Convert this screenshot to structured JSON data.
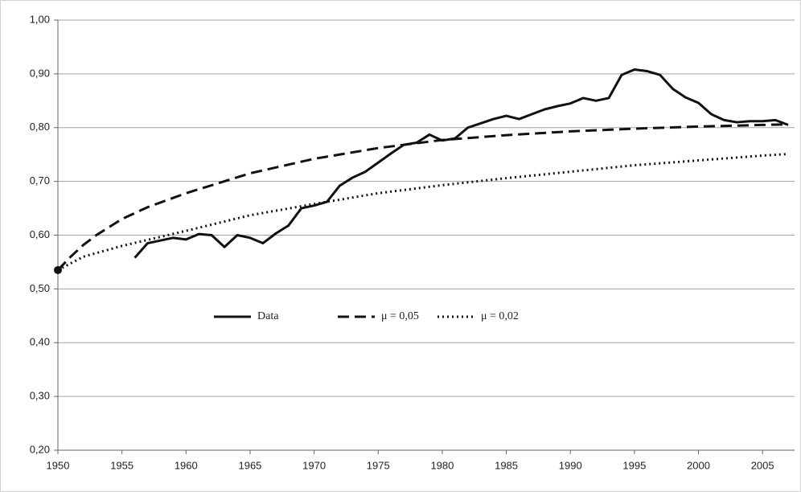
{
  "chart_data": {
    "type": "line",
    "xlim": [
      1950,
      2007.5
    ],
    "xticks": [
      1950,
      1955,
      1960,
      1965,
      1970,
      1975,
      1980,
      1985,
      1990,
      1995,
      2000,
      2005
    ],
    "ylim": [
      0.2,
      1.0
    ],
    "yticks": [
      {
        "value": 0.2,
        "label": "0,20"
      },
      {
        "value": 0.3,
        "label": "0,30"
      },
      {
        "value": 0.4,
        "label": "0,40"
      },
      {
        "value": 0.5,
        "label": "0,50"
      },
      {
        "value": 0.6,
        "label": "0,60"
      },
      {
        "value": 0.7,
        "label": "0,70"
      },
      {
        "value": 0.8,
        "label": "0,80"
      },
      {
        "value": 0.9,
        "label": "0,90"
      },
      {
        "value": 1.0,
        "label": "1,00"
      }
    ],
    "grid": true,
    "legend": "center",
    "series": [
      {
        "name": "Data",
        "color": "#111111",
        "dash": "solid",
        "x": [
          1956,
          1957,
          1958,
          1959,
          1960,
          1961,
          1962,
          1963,
          1964,
          1965,
          1966,
          1967,
          1968,
          1969,
          1970,
          1971,
          1972,
          1973,
          1974,
          1975,
          1976,
          1977,
          1978,
          1979,
          1980,
          1981,
          1982,
          1983,
          1984,
          1985,
          1986,
          1987,
          1988,
          1989,
          1990,
          1991,
          1992,
          1993,
          1994,
          1995,
          1996,
          1997,
          1998,
          1999,
          2000,
          2001,
          2002,
          2003,
          2004,
          2005,
          2006,
          2007
        ],
        "values": [
          0.558,
          0.585,
          0.59,
          0.595,
          0.592,
          0.602,
          0.6,
          0.578,
          0.6,
          0.595,
          0.585,
          0.603,
          0.618,
          0.65,
          0.655,
          0.662,
          0.692,
          0.707,
          0.718,
          0.735,
          0.752,
          0.768,
          0.772,
          0.787,
          0.776,
          0.78,
          0.8,
          0.808,
          0.816,
          0.822,
          0.816,
          0.825,
          0.834,
          0.84,
          0.845,
          0.855,
          0.85,
          0.855,
          0.898,
          0.908,
          0.905,
          0.898,
          0.872,
          0.856,
          0.846,
          0.825,
          0.814,
          0.81,
          0.812,
          0.812,
          0.814,
          0.805
        ]
      },
      {
        "name": "μ = 0,05",
        "color": "#111111",
        "dash": "dashed",
        "x": [
          1950,
          1951,
          1952,
          1953,
          1955,
          1957,
          1960,
          1965,
          1970,
          1975,
          1980,
          1985,
          1990,
          1995,
          2000,
          2005,
          2007
        ],
        "values": [
          0.535,
          0.56,
          0.582,
          0.6,
          0.63,
          0.652,
          0.678,
          0.715,
          0.742,
          0.762,
          0.777,
          0.786,
          0.793,
          0.798,
          0.802,
          0.805,
          0.806
        ]
      },
      {
        "name": "μ = 0,02",
        "color": "#111111",
        "dash": "dotted",
        "x": [
          1950,
          1952,
          1955,
          1960,
          1965,
          1970,
          1975,
          1980,
          1985,
          1990,
          1995,
          2000,
          2005,
          2007
        ],
        "values": [
          0.535,
          0.56,
          0.58,
          0.608,
          0.637,
          0.658,
          0.678,
          0.693,
          0.706,
          0.718,
          0.73,
          0.739,
          0.748,
          0.751
        ]
      }
    ],
    "point": {
      "x": 1950,
      "y": 0.535,
      "color": "#111111"
    }
  }
}
